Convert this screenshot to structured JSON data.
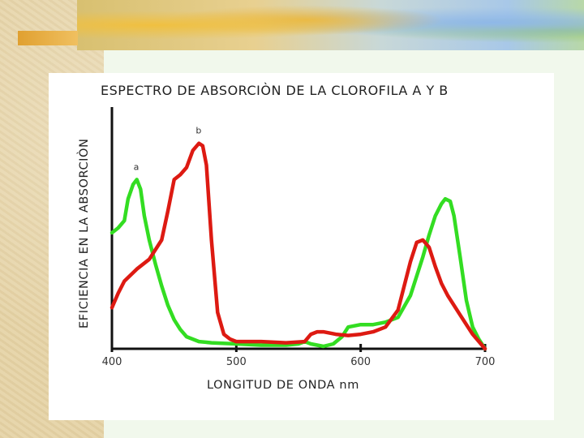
{
  "colors": {
    "chlorophyll_a": "#33dd22",
    "chlorophyll_b": "#dd1a12",
    "axis": "#111111"
  },
  "chart_data": {
    "type": "line",
    "title": "ESPECTRO DE ABSORCIÒN DE LA CLOROFILA  A  Y  B",
    "xlabel": "LONGITUD DE ONDA  nm",
    "ylabel": "EFICIENCIA EN LA ABSORCIÒN",
    "xlim": [
      400,
      700
    ],
    "ylim": [
      0,
      100
    ],
    "x_ticks": [
      400,
      500,
      600,
      700
    ],
    "grid": false,
    "series": [
      {
        "name": "a",
        "color": "#33dd22",
        "points": [
          [
            400,
            48
          ],
          [
            405,
            50
          ],
          [
            410,
            53
          ],
          [
            413,
            62
          ],
          [
            417,
            68
          ],
          [
            420,
            70
          ],
          [
            423,
            66
          ],
          [
            426,
            55
          ],
          [
            430,
            45
          ],
          [
            435,
            35
          ],
          [
            440,
            26
          ],
          [
            445,
            18
          ],
          [
            450,
            12
          ],
          [
            455,
            8
          ],
          [
            460,
            5
          ],
          [
            470,
            3
          ],
          [
            480,
            2.5
          ],
          [
            500,
            2
          ],
          [
            520,
            1.5
          ],
          [
            540,
            1.5
          ],
          [
            550,
            2
          ],
          [
            555,
            3
          ],
          [
            560,
            2
          ],
          [
            570,
            1
          ],
          [
            578,
            2
          ],
          [
            585,
            5
          ],
          [
            590,
            9
          ],
          [
            600,
            10
          ],
          [
            610,
            10
          ],
          [
            620,
            11
          ],
          [
            630,
            13
          ],
          [
            640,
            22
          ],
          [
            650,
            38
          ],
          [
            655,
            47
          ],
          [
            660,
            55
          ],
          [
            665,
            60
          ],
          [
            668,
            62
          ],
          [
            672,
            61
          ],
          [
            675,
            55
          ],
          [
            680,
            38
          ],
          [
            685,
            20
          ],
          [
            690,
            9
          ],
          [
            695,
            4
          ],
          [
            700,
            0
          ]
        ]
      },
      {
        "name": "b",
        "color": "#dd1a12",
        "points": [
          [
            400,
            17
          ],
          [
            405,
            23
          ],
          [
            410,
            28
          ],
          [
            420,
            33
          ],
          [
            430,
            37
          ],
          [
            440,
            45
          ],
          [
            445,
            57
          ],
          [
            450,
            70
          ],
          [
            455,
            72
          ],
          [
            460,
            75
          ],
          [
            465,
            82
          ],
          [
            470,
            85
          ],
          [
            473,
            84
          ],
          [
            476,
            76
          ],
          [
            480,
            45
          ],
          [
            485,
            15
          ],
          [
            490,
            6
          ],
          [
            495,
            4
          ],
          [
            500,
            3
          ],
          [
            520,
            3
          ],
          [
            540,
            2.5
          ],
          [
            555,
            3
          ],
          [
            560,
            6
          ],
          [
            565,
            7
          ],
          [
            570,
            7
          ],
          [
            580,
            6
          ],
          [
            590,
            5.5
          ],
          [
            600,
            6
          ],
          [
            610,
            7
          ],
          [
            620,
            9
          ],
          [
            630,
            16
          ],
          [
            640,
            36
          ],
          [
            645,
            44
          ],
          [
            650,
            45
          ],
          [
            655,
            42
          ],
          [
            660,
            34
          ],
          [
            665,
            27
          ],
          [
            670,
            22
          ],
          [
            680,
            14
          ],
          [
            690,
            6
          ],
          [
            700,
            0
          ]
        ]
      }
    ]
  }
}
